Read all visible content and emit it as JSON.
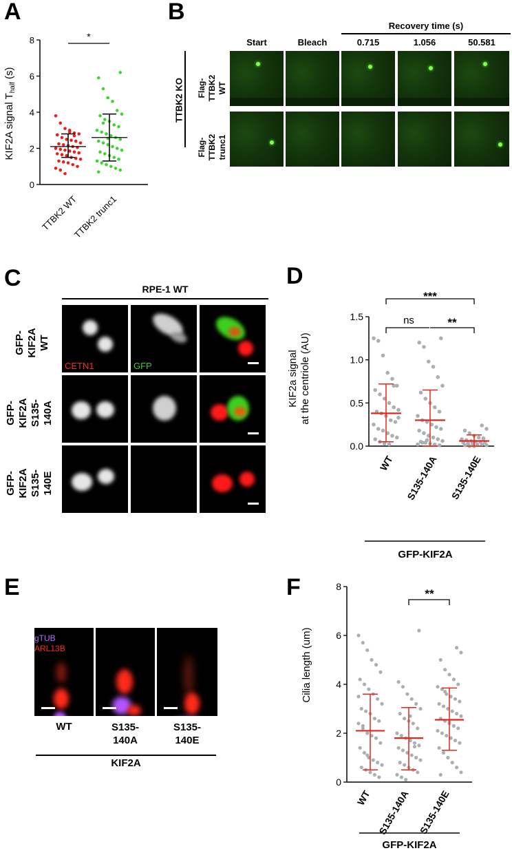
{
  "panel_labels": {
    "A": "A",
    "B": "B",
    "C": "C",
    "D": "D",
    "E": "E",
    "F": "F"
  },
  "panelA": {
    "ylabel_prefix": "KIF2A signal T",
    "ylabel_sub": "half",
    "ylabel_suffix": " (s)",
    "significance": "*",
    "yticks": [
      "0",
      "2",
      "4",
      "6",
      "8"
    ],
    "xticks": [
      "TTBK2 WT",
      "TTBK2 trunc1"
    ]
  },
  "panelB": {
    "recovery_header": "Recovery time (s)",
    "columns": [
      "Start",
      "Bleach",
      "0.715",
      "1.056",
      "50.581"
    ],
    "group_label": "TTBK2 KO",
    "row_labels": [
      [
        "Flag-",
        "TTBK2",
        "WT"
      ],
      [
        "Flag-",
        "TTBK2",
        "trunc1"
      ]
    ]
  },
  "panelC": {
    "header": "RPE-1 WT",
    "row_labels": [
      [
        "GFP-",
        "KIF2A",
        "WT"
      ],
      [
        "GFP-",
        "KIF2A",
        "S135-",
        "140A"
      ],
      [
        "GFP-",
        "KIF2A",
        "S135-",
        "140E"
      ]
    ],
    "channel_cetn1": "CETN1",
    "channel_gfp": "GFP"
  },
  "panelD": {
    "ylabel": [
      "KIF2a signal",
      "at the centriole (AU)"
    ],
    "yticks": [
      "0.0",
      "0.5",
      "1.0",
      "1.5"
    ],
    "xticks": [
      "WT",
      "S135-140A",
      "S135-140E"
    ],
    "group": "GFP-KIF2A",
    "sig_top": "***",
    "sig_ns": "ns",
    "sig_2": "**"
  },
  "panelE": {
    "legend_gtub": "gTUB",
    "legend_arl13b": "ARL13B",
    "labels": [
      [
        "WT"
      ],
      [
        "S135-",
        "140A"
      ],
      [
        "S135-",
        "140E"
      ]
    ],
    "group": "KIF2A"
  },
  "panelF": {
    "ylabel": "Cilia length (um)",
    "yticks": [
      "0",
      "2",
      "4",
      "6",
      "8"
    ],
    "xticks": [
      "WT",
      "S135-140A",
      "S135-140E"
    ],
    "group": "GFP-KIF2A",
    "significance": "**"
  },
  "chart_data": [
    {
      "type": "scatter",
      "panel": "A",
      "ylabel": "KIF2A signal T half (s)",
      "ylim": [
        0,
        8
      ],
      "categories": [
        "TTBK2 WT",
        "TTBK2 trunc1"
      ],
      "series": [
        {
          "name": "TTBK2 WT",
          "color": "#e8201a",
          "mean": 2.1,
          "sd": [
            1.5,
            2.8
          ],
          "values": [
            3.8,
            3.4,
            3.1,
            2.9,
            2.85,
            2.8,
            2.75,
            2.6,
            2.5,
            2.45,
            2.4,
            2.3,
            2.25,
            2.2,
            2.15,
            2.1,
            2.05,
            2.0,
            1.95,
            1.9,
            1.85,
            1.8,
            1.75,
            1.7,
            1.65,
            1.6,
            1.5,
            1.45,
            1.4,
            1.3,
            1.25,
            1.2,
            1.1,
            1.0,
            0.9,
            0.8,
            0.6,
            3.0,
            2.7
          ]
        },
        {
          "name": "TTBK2 trunc1",
          "color": "#3bd62b",
          "mean": 2.6,
          "sd": [
            1.3,
            3.9
          ],
          "values": [
            6.2,
            5.9,
            5.3,
            4.8,
            4.6,
            4.1,
            3.9,
            3.8,
            3.6,
            3.5,
            3.3,
            3.2,
            3.0,
            2.9,
            2.8,
            2.7,
            2.6,
            2.5,
            2.4,
            2.3,
            2.2,
            2.1,
            2.0,
            1.9,
            1.8,
            1.7,
            1.6,
            1.5,
            1.4,
            1.3,
            1.2,
            1.1,
            1.0,
            0.9,
            0.8,
            0.7,
            3.4,
            2.55
          ]
        }
      ]
    },
    {
      "type": "scatter",
      "panel": "D",
      "ylabel": "KIF2a signal at the centriole (AU)",
      "ylim": [
        0,
        1.5
      ],
      "categories": [
        "WT",
        "S135-140A",
        "S135-140E"
      ],
      "series": [
        {
          "name": "WT",
          "mean": 0.38,
          "sd": [
            0.05,
            0.72
          ],
          "values": [
            1.25,
            1.22,
            1.05,
            0.85,
            0.78,
            0.7,
            0.65,
            0.6,
            0.55,
            0.5,
            0.45,
            0.42,
            0.4,
            0.38,
            0.35,
            0.3,
            0.28,
            0.25,
            0.2,
            0.18,
            0.15,
            0.12,
            0.1,
            0.08,
            0.05,
            0.03,
            0.02,
            0.7,
            0.33
          ]
        },
        {
          "name": "S135-140A",
          "mean": 0.3,
          "sd": [
            0.0,
            0.65
          ],
          "values": [
            1.25,
            1.2,
            1.15,
            0.98,
            0.92,
            0.8,
            0.7,
            0.62,
            0.55,
            0.5,
            0.45,
            0.4,
            0.35,
            0.3,
            0.28,
            0.25,
            0.22,
            0.2,
            0.18,
            0.15,
            0.12,
            0.1,
            0.08,
            0.06,
            0.05,
            0.04,
            0.03,
            0.02,
            0.01,
            0.02,
            0.04,
            0.07
          ]
        },
        {
          "name": "S135-140E",
          "mean": 0.06,
          "sd": [
            0.0,
            0.13
          ],
          "values": [
            0.24,
            0.2,
            0.18,
            0.15,
            0.12,
            0.1,
            0.09,
            0.08,
            0.07,
            0.06,
            0.05,
            0.05,
            0.04,
            0.04,
            0.03,
            0.03,
            0.02,
            0.02,
            0.01,
            0.01,
            0.0,
            0.0
          ]
        }
      ]
    },
    {
      "type": "scatter",
      "panel": "F",
      "ylabel": "Cilia length (um)",
      "ylim": [
        0,
        8
      ],
      "categories": [
        "WT",
        "S135-140A",
        "S135-140E"
      ],
      "series": [
        {
          "name": "WT",
          "mean": 2.1,
          "sd": [
            0.5,
            3.6
          ],
          "values": [
            6.0,
            5.7,
            5.4,
            5.0,
            4.8,
            4.5,
            4.2,
            4.0,
            3.8,
            3.6,
            3.4,
            3.2,
            3.0,
            2.9,
            2.8,
            2.6,
            2.5,
            2.4,
            2.2,
            2.0,
            1.9,
            1.8,
            1.6,
            1.4,
            1.2,
            1.0,
            0.9,
            0.8,
            0.7,
            0.6,
            0.5,
            0.4,
            0.3,
            0.2,
            3.5,
            2.3,
            1.1
          ]
        },
        {
          "name": "S135-140A",
          "mean": 1.8,
          "sd": [
            0.5,
            3.05
          ],
          "values": [
            6.2,
            4.1,
            3.9,
            3.6,
            3.4,
            3.2,
            3.0,
            2.8,
            2.6,
            2.5,
            2.4,
            2.2,
            2.0,
            1.9,
            1.8,
            1.7,
            1.6,
            1.5,
            1.4,
            1.3,
            1.2,
            1.1,
            1.0,
            0.9,
            0.8,
            0.7,
            0.6,
            0.5,
            0.4,
            0.3,
            0.2,
            0.1,
            2.7,
            1.45
          ]
        },
        {
          "name": "S135-140E",
          "mean": 2.55,
          "sd": [
            1.3,
            3.85
          ],
          "values": [
            5.5,
            5.3,
            5.0,
            4.6,
            4.4,
            4.2,
            4.0,
            3.9,
            3.8,
            3.6,
            3.5,
            3.4,
            3.3,
            3.2,
            3.1,
            3.0,
            2.9,
            2.8,
            2.7,
            2.6,
            2.5,
            2.4,
            2.3,
            2.2,
            2.1,
            2.0,
            1.9,
            1.8,
            1.7,
            1.6,
            1.4,
            1.2,
            1.0,
            0.8,
            0.6,
            0.4,
            0.3,
            3.7,
            2.45
          ]
        }
      ]
    }
  ]
}
